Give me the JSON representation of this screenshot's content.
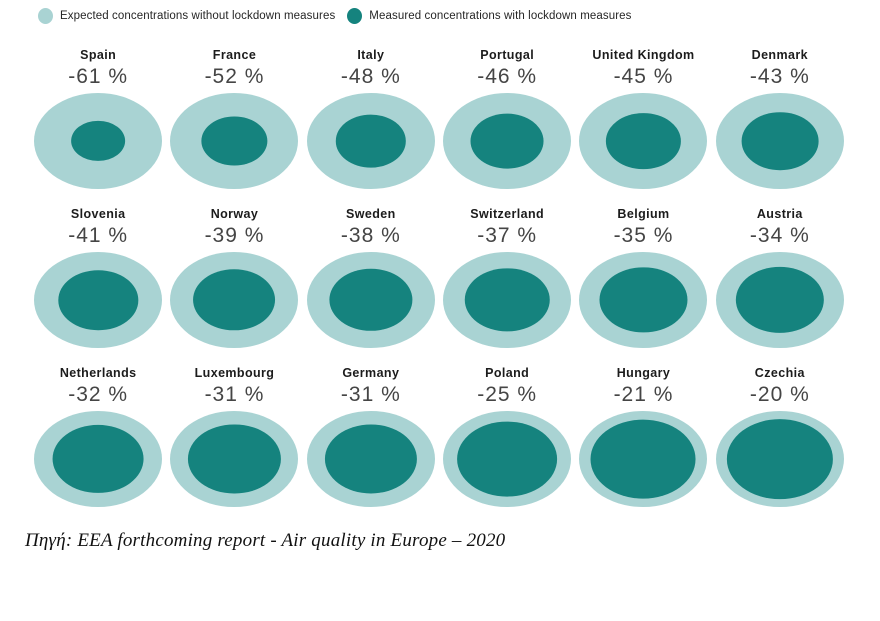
{
  "legend": {
    "expected_label": "Expected concentrations without lockdown measures",
    "measured_label": "Measured concentrations with lockdown measures"
  },
  "colors": {
    "expected": "#a9d3d3",
    "measured": "#15837e",
    "country_label": "#1c1c1c",
    "pct_label": "#454545"
  },
  "source_note": "Πηγή: EEA forthcoming report - Air quality in Europe – 2020",
  "chart_data": {
    "type": "bubble",
    "subtype": "nested-circles-comparison",
    "title": "",
    "unit": "%",
    "legend": [
      "Expected concentrations without lockdown measures",
      "Measured concentrations with lockdown measures"
    ],
    "legend_position": "top-left",
    "layout": {
      "rows": 3,
      "cols": 6
    },
    "encoding": "inner circle diameter relative to outer circle equals measured/expected concentration; label shows percent change",
    "categories": [
      "Spain",
      "France",
      "Italy",
      "Portugal",
      "United Kingdom",
      "Denmark",
      "Slovenia",
      "Norway",
      "Sweden",
      "Switzerland",
      "Belgium",
      "Austria",
      "Netherlands",
      "Luxembourg",
      "Germany",
      "Poland",
      "Hungary",
      "Czechia"
    ],
    "values": [
      -61,
      -52,
      -48,
      -46,
      -45,
      -43,
      -41,
      -39,
      -38,
      -37,
      -35,
      -34,
      -32,
      -31,
      -31,
      -25,
      -21,
      -20
    ],
    "countries": [
      {
        "name": "Spain",
        "change_pct": -61,
        "label": "-61 %"
      },
      {
        "name": "France",
        "change_pct": -52,
        "label": "-52 %"
      },
      {
        "name": "Italy",
        "change_pct": -48,
        "label": "-48 %"
      },
      {
        "name": "Portugal",
        "change_pct": -46,
        "label": "-46 %"
      },
      {
        "name": "United Kingdom",
        "change_pct": -45,
        "label": "-45 %"
      },
      {
        "name": "Denmark",
        "change_pct": -43,
        "label": "-43 %"
      },
      {
        "name": "Slovenia",
        "change_pct": -41,
        "label": "-41 %"
      },
      {
        "name": "Norway",
        "change_pct": -39,
        "label": "-39 %"
      },
      {
        "name": "Sweden",
        "change_pct": -38,
        "label": "-38 %"
      },
      {
        "name": "Switzerland",
        "change_pct": -37,
        "label": "-37 %"
      },
      {
        "name": "Belgium",
        "change_pct": -35,
        "label": "-35 %"
      },
      {
        "name": "Austria",
        "change_pct": -34,
        "label": "-34 %"
      },
      {
        "name": "Netherlands",
        "change_pct": -32,
        "label": "-32 %"
      },
      {
        "name": "Luxembourg",
        "change_pct": -31,
        "label": "-31 %"
      },
      {
        "name": "Germany",
        "change_pct": -31,
        "label": "-31 %"
      },
      {
        "name": "Poland",
        "change_pct": -25,
        "label": "-25 %"
      },
      {
        "name": "Hungary",
        "change_pct": -21,
        "label": "-21 %"
      },
      {
        "name": "Czechia",
        "change_pct": -20,
        "label": "-20 %"
      }
    ]
  }
}
